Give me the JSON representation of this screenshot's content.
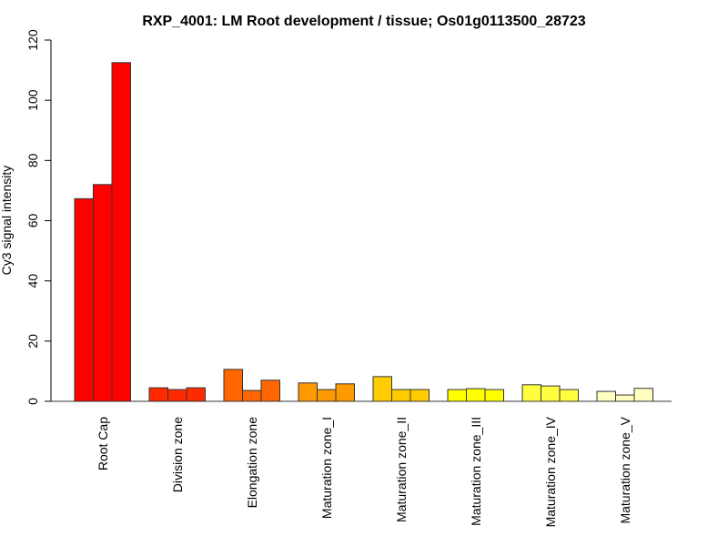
{
  "chart_data": {
    "type": "bar",
    "title": "RXP_4001: LM Root development / tissue; Os01g0113500_28723",
    "xlabel": "",
    "ylabel": "Cy3 signal intensity",
    "ylim": [
      0,
      120
    ],
    "yticks": [
      0,
      20,
      40,
      60,
      80,
      100,
      120
    ],
    "grid": false,
    "legend": "none",
    "categories": [
      "Root Cap",
      "Division zone",
      "Elongation zone",
      "Maturation zone_I",
      "Maturation zone_II",
      "Maturation zone_III",
      "Maturation zone_IV",
      "Maturation zone_V"
    ],
    "colors": [
      "#ff0000",
      "#ff2a00",
      "#ff6600",
      "#ff9900",
      "#ffcc00",
      "#ffff00",
      "#ffff40",
      "#ffffc0"
    ],
    "replicates": [
      [
        67.3,
        72.0,
        112.5
      ],
      [
        4.5,
        3.9,
        4.5
      ],
      [
        10.6,
        3.6,
        7.0
      ],
      [
        6.1,
        3.9,
        5.8
      ],
      [
        8.2,
        3.9,
        3.9
      ],
      [
        3.9,
        4.2,
        3.9
      ],
      [
        5.5,
        5.1,
        3.9
      ],
      [
        3.3,
        2.1,
        4.3
      ]
    ]
  }
}
